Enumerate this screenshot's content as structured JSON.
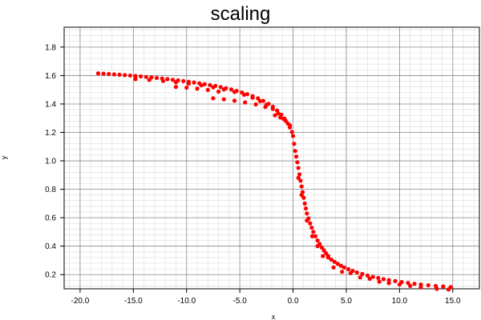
{
  "chart_data": {
    "type": "scatter",
    "title": "scaling",
    "xlabel": "x",
    "ylabel": "y",
    "xlim": [
      -21.5,
      17.5
    ],
    "ylim": [
      0.1,
      1.94
    ],
    "xticks": [
      -20,
      -15,
      -10,
      -5,
      0,
      5,
      10,
      15
    ],
    "xtick_labels": [
      "-20.0",
      "-15.0",
      "-10.0",
      "-5.0",
      "0.0",
      "5.0",
      "10.0",
      "15.0"
    ],
    "yticks": [
      0.2,
      0.4,
      0.6,
      0.8,
      1.0,
      1.2,
      1.4,
      1.6,
      1.8
    ],
    "ytick_labels": [
      "0.2",
      "0.4",
      "0.6",
      "0.8",
      "1.0",
      "1.2",
      "1.4",
      "1.6",
      "1.8"
    ],
    "grid": true,
    "marker_color": "#ff0000",
    "points": [
      [
        -18.3,
        1.615
      ],
      [
        -17.8,
        1.613
      ],
      [
        -17.3,
        1.611
      ],
      [
        -16.8,
        1.608
      ],
      [
        -16.3,
        1.606
      ],
      [
        -15.8,
        1.603
      ],
      [
        -15.3,
        1.6
      ],
      [
        -14.8,
        1.597
      ],
      [
        -14.3,
        1.594
      ],
      [
        -13.8,
        1.59
      ],
      [
        -13.3,
        1.587
      ],
      [
        -12.8,
        1.583
      ],
      [
        -12.3,
        1.579
      ],
      [
        -11.8,
        1.575
      ],
      [
        -11.3,
        1.57
      ],
      [
        -10.8,
        1.566
      ],
      [
        -10.3,
        1.561
      ],
      [
        -9.8,
        1.556
      ],
      [
        -9.3,
        1.551
      ],
      [
        -8.8,
        1.545
      ],
      [
        -8.3,
        1.539
      ],
      [
        -7.8,
        1.533
      ],
      [
        -7.3,
        1.527
      ],
      [
        -6.8,
        1.519
      ],
      [
        -6.3,
        1.511
      ],
      [
        -5.8,
        1.502
      ],
      [
        -5.3,
        1.492
      ],
      [
        -4.8,
        1.481
      ],
      [
        -4.3,
        1.469
      ],
      [
        -3.8,
        1.455
      ],
      [
        -3.3,
        1.44
      ],
      [
        -2.8,
        1.422
      ],
      [
        -2.3,
        1.401
      ],
      [
        -1.9,
        1.38
      ],
      [
        -1.5,
        1.354
      ],
      [
        -1.1,
        1.325
      ],
      [
        -0.8,
        1.297
      ],
      [
        -0.5,
        1.263
      ],
      [
        -0.3,
        1.235
      ],
      [
        -0.1,
        1.203
      ],
      [
        -14.8,
        1.575
      ],
      [
        -13.5,
        1.569
      ],
      [
        -12.2,
        1.562
      ],
      [
        -11.0,
        1.553
      ],
      [
        -9.8,
        1.543
      ],
      [
        -8.6,
        1.531
      ],
      [
        -7.5,
        1.517
      ],
      [
        -6.5,
        1.502
      ],
      [
        -5.5,
        1.484
      ],
      [
        -4.6,
        1.465
      ],
      [
        -3.8,
        1.444
      ],
      [
        -3.1,
        1.42
      ],
      [
        -2.5,
        1.395
      ],
      [
        -1.9,
        1.365
      ],
      [
        -1.4,
        1.334
      ],
      [
        -0.9,
        1.296
      ],
      [
        -11.0,
        1.52
      ],
      [
        -10.0,
        1.515
      ],
      [
        -9.0,
        1.508
      ],
      [
        -8.0,
        1.499
      ],
      [
        -7.0,
        1.487
      ],
      [
        -7.5,
        1.44
      ],
      [
        -6.5,
        1.433
      ],
      [
        -5.5,
        1.423
      ],
      [
        -4.5,
        1.411
      ],
      [
        -3.5,
        1.397
      ],
      [
        -2.6,
        1.379
      ],
      [
        -1.7,
        1.32
      ],
      [
        -1.2,
        1.305
      ],
      [
        -0.7,
        1.282
      ],
      [
        -0.3,
        1.25
      ],
      [
        0.0,
        1.175
      ],
      [
        0.1,
        1.12
      ],
      [
        0.2,
        1.07
      ],
      [
        0.3,
        1.03
      ],
      [
        0.4,
        0.99
      ],
      [
        0.5,
        0.95
      ],
      [
        0.6,
        0.905
      ],
      [
        0.7,
        0.86
      ],
      [
        0.8,
        0.82
      ],
      [
        0.9,
        0.78
      ],
      [
        1.0,
        0.74
      ],
      [
        1.1,
        0.7
      ],
      [
        1.2,
        0.665
      ],
      [
        1.3,
        0.63
      ],
      [
        1.45,
        0.595
      ],
      [
        1.6,
        0.56
      ],
      [
        1.75,
        0.53
      ],
      [
        1.9,
        0.5
      ],
      [
        2.1,
        0.47
      ],
      [
        2.3,
        0.44
      ],
      [
        2.5,
        0.415
      ],
      [
        2.7,
        0.39
      ],
      [
        2.9,
        0.37
      ],
      [
        3.1,
        0.35
      ],
      [
        0.5,
        0.88
      ],
      [
        0.8,
        0.76
      ],
      [
        1.3,
        0.58
      ],
      [
        1.8,
        0.47
      ],
      [
        2.3,
        0.4
      ],
      [
        2.8,
        0.33
      ],
      [
        3.3,
        0.33
      ],
      [
        3.3,
        0.32
      ],
      [
        3.6,
        0.305
      ],
      [
        3.9,
        0.29
      ],
      [
        4.2,
        0.275
      ],
      [
        4.5,
        0.262
      ],
      [
        4.8,
        0.25
      ],
      [
        5.2,
        0.238
      ],
      [
        5.6,
        0.226
      ],
      [
        6.0,
        0.215
      ],
      [
        6.5,
        0.204
      ],
      [
        7.0,
        0.193
      ],
      [
        7.5,
        0.184
      ],
      [
        8.0,
        0.176
      ],
      [
        8.5,
        0.168
      ],
      [
        9.0,
        0.161
      ],
      [
        9.6,
        0.154
      ],
      [
        10.2,
        0.147
      ],
      [
        10.8,
        0.141
      ],
      [
        11.4,
        0.135
      ],
      [
        12.0,
        0.13
      ],
      [
        12.7,
        0.125
      ],
      [
        13.4,
        0.12
      ],
      [
        14.1,
        0.116
      ],
      [
        14.8,
        0.112
      ],
      [
        3.8,
        0.25
      ],
      [
        4.6,
        0.22
      ],
      [
        5.4,
        0.21
      ],
      [
        6.3,
        0.18
      ],
      [
        7.2,
        0.17
      ],
      [
        8.1,
        0.15
      ],
      [
        9.0,
        0.14
      ],
      [
        10.0,
        0.13
      ],
      [
        11.0,
        0.12
      ],
      [
        12.0,
        0.11
      ],
      [
        13.5,
        0.1
      ],
      [
        14.6,
        0.095
      ]
    ]
  }
}
